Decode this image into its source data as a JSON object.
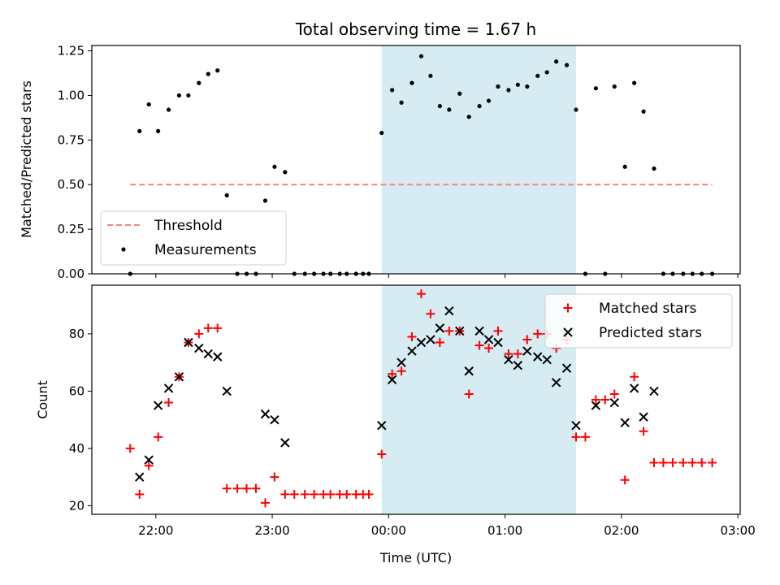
{
  "chart_data": {
    "title": "Total observing time = 1.67 h",
    "xlabel": "Time (UTC)",
    "x_unit": "hours since midnight UTC",
    "xlim": [
      -2.55,
      3.02
    ],
    "x_ticks": [
      {
        "value": -2,
        "label": "22:00"
      },
      {
        "value": -1,
        "label": "23:00"
      },
      {
        "value": 0,
        "label": "00:00"
      },
      {
        "value": 1,
        "label": "01:00"
      },
      {
        "value": 2,
        "label": "02:00"
      },
      {
        "value": 3,
        "label": "03:00"
      }
    ],
    "highlight_span": {
      "x_start": -0.06,
      "x_end": 1.61,
      "color": "#add8e6"
    },
    "panels": [
      {
        "type": "scatter",
        "ylabel": "Matched/Predicted stars",
        "ylim": [
          0,
          1.28
        ],
        "y_ticks": [
          {
            "value": 0,
            "label": "0.00"
          },
          {
            "value": 0.25,
            "label": "0.25"
          },
          {
            "value": 0.5,
            "label": "0.50"
          },
          {
            "value": 0.75,
            "label": "0.75"
          },
          {
            "value": 1.0,
            "label": "1.00"
          },
          {
            "value": 1.25,
            "label": "1.25"
          }
        ],
        "legend": {
          "placement": "lower-left",
          "entries": [
            {
              "label": "Threshold",
              "color": "#ff7f7f",
              "marker": "dashed-line"
            },
            {
              "label": "Measurements",
              "color": "#000000",
              "marker": "dot"
            }
          ]
        },
        "threshold": {
          "name": "Threshold",
          "y": 0.5,
          "x_start": -2.22,
          "x_end": 2.78,
          "color": "#ff7f7f"
        },
        "series": [
          {
            "name": "Measurements",
            "color": "#000000",
            "marker": "dot",
            "points": [
              [
                -2.22,
                0
              ],
              [
                -2.14,
                0.8
              ],
              [
                -2.06,
                0.95
              ],
              [
                -1.98,
                0.8
              ],
              [
                -1.89,
                0.92
              ],
              [
                -1.8,
                1.0
              ],
              [
                -1.72,
                1.0
              ],
              [
                -1.63,
                1.07
              ],
              [
                -1.55,
                1.12
              ],
              [
                -1.47,
                1.14
              ],
              [
                -1.39,
                0.44
              ],
              [
                -1.3,
                0
              ],
              [
                -1.22,
                0
              ],
              [
                -1.14,
                0
              ],
              [
                -1.06,
                0.41
              ],
              [
                -0.98,
                0.6
              ],
              [
                -0.89,
                0.57
              ],
              [
                -0.81,
                0
              ],
              [
                -0.72,
                0
              ],
              [
                -0.64,
                0
              ],
              [
                -0.56,
                0
              ],
              [
                -0.5,
                0
              ],
              [
                -0.42,
                0
              ],
              [
                -0.36,
                0
              ],
              [
                -0.28,
                0
              ],
              [
                -0.22,
                0
              ],
              [
                -0.17,
                0
              ],
              [
                -0.06,
                0.79
              ],
              [
                0.03,
                1.03
              ],
              [
                0.11,
                0.96
              ],
              [
                0.2,
                1.07
              ],
              [
                0.28,
                1.22
              ],
              [
                0.36,
                1.11
              ],
              [
                0.44,
                0.94
              ],
              [
                0.52,
                0.92
              ],
              [
                0.61,
                1.01
              ],
              [
                0.69,
                0.88
              ],
              [
                0.78,
                0.94
              ],
              [
                0.86,
                0.97
              ],
              [
                0.94,
                1.05
              ],
              [
                1.03,
                1.03
              ],
              [
                1.11,
                1.06
              ],
              [
                1.19,
                1.05
              ],
              [
                1.28,
                1.11
              ],
              [
                1.36,
                1.13
              ],
              [
                1.44,
                1.19
              ],
              [
                1.53,
                1.17
              ],
              [
                1.61,
                0.92
              ],
              [
                1.69,
                0
              ],
              [
                1.78,
                1.04
              ],
              [
                1.86,
                0
              ],
              [
                1.94,
                1.05
              ],
              [
                2.03,
                0.6
              ],
              [
                2.11,
                1.07
              ],
              [
                2.19,
                0.91
              ],
              [
                2.28,
                0.59
              ],
              [
                2.36,
                0
              ],
              [
                2.44,
                0
              ],
              [
                2.53,
                0
              ],
              [
                2.61,
                0
              ],
              [
                2.69,
                0
              ],
              [
                2.78,
                0
              ]
            ]
          }
        ]
      },
      {
        "type": "scatter",
        "ylabel": "Count",
        "ylim": [
          17,
          97
        ],
        "y_ticks": [
          {
            "value": 20,
            "label": "20"
          },
          {
            "value": 40,
            "label": "40"
          },
          {
            "value": 60,
            "label": "60"
          },
          {
            "value": 80,
            "label": "80"
          }
        ],
        "legend": {
          "placement": "upper-right",
          "entries": [
            {
              "label": "Matched stars",
              "color": "#ff0000",
              "marker": "plus"
            },
            {
              "label": "Predicted stars",
              "color": "#000000",
              "marker": "cross"
            }
          ]
        },
        "series": [
          {
            "name": "Matched stars",
            "color": "#ff0000",
            "marker": "plus",
            "points": [
              [
                -2.22,
                40
              ],
              [
                -2.14,
                24
              ],
              [
                -2.06,
                34
              ],
              [
                -1.98,
                44
              ],
              [
                -1.89,
                56
              ],
              [
                -1.8,
                65
              ],
              [
                -1.72,
                77
              ],
              [
                -1.63,
                80
              ],
              [
                -1.55,
                82
              ],
              [
                -1.47,
                82
              ],
              [
                -1.39,
                26
              ],
              [
                -1.3,
                26
              ],
              [
                -1.22,
                26
              ],
              [
                -1.14,
                26
              ],
              [
                -1.06,
                21
              ],
              [
                -0.98,
                30
              ],
              [
                -0.89,
                24
              ],
              [
                -0.81,
                24
              ],
              [
                -0.72,
                24
              ],
              [
                -0.64,
                24
              ],
              [
                -0.56,
                24
              ],
              [
                -0.5,
                24
              ],
              [
                -0.42,
                24
              ],
              [
                -0.36,
                24
              ],
              [
                -0.28,
                24
              ],
              [
                -0.22,
                24
              ],
              [
                -0.17,
                24
              ],
              [
                -0.06,
                38
              ],
              [
                0.03,
                66
              ],
              [
                0.11,
                67
              ],
              [
                0.2,
                79
              ],
              [
                0.28,
                94
              ],
              [
                0.36,
                87
              ],
              [
                0.44,
                77
              ],
              [
                0.52,
                81
              ],
              [
                0.61,
                81
              ],
              [
                0.69,
                59
              ],
              [
                0.78,
                76
              ],
              [
                0.86,
                75
              ],
              [
                0.94,
                81
              ],
              [
                1.03,
                73
              ],
              [
                1.11,
                73
              ],
              [
                1.19,
                78
              ],
              [
                1.28,
                80
              ],
              [
                1.36,
                80
              ],
              [
                1.44,
                75
              ],
              [
                1.53,
                78
              ],
              [
                1.61,
                44
              ],
              [
                1.69,
                44
              ],
              [
                1.78,
                57
              ],
              [
                1.86,
                57
              ],
              [
                1.94,
                59
              ],
              [
                2.03,
                29
              ],
              [
                2.11,
                65
              ],
              [
                2.19,
                46
              ],
              [
                2.28,
                35
              ],
              [
                2.36,
                35
              ],
              [
                2.44,
                35
              ],
              [
                2.53,
                35
              ],
              [
                2.61,
                35
              ],
              [
                2.69,
                35
              ],
              [
                2.78,
                35
              ]
            ]
          },
          {
            "name": "Predicted stars",
            "color": "#000000",
            "marker": "cross",
            "points": [
              [
                -2.14,
                30
              ],
              [
                -2.06,
                36
              ],
              [
                -1.98,
                55
              ],
              [
                -1.89,
                61
              ],
              [
                -1.8,
                65
              ],
              [
                -1.72,
                77
              ],
              [
                -1.63,
                75
              ],
              [
                -1.55,
                73
              ],
              [
                -1.47,
                72
              ],
              [
                -1.39,
                60
              ],
              [
                -1.06,
                52
              ],
              [
                -0.98,
                50
              ],
              [
                -0.89,
                42
              ],
              [
                -0.06,
                48
              ],
              [
                0.03,
                64
              ],
              [
                0.11,
                70
              ],
              [
                0.2,
                74
              ],
              [
                0.28,
                77
              ],
              [
                0.36,
                78
              ],
              [
                0.44,
                82
              ],
              [
                0.52,
                88
              ],
              [
                0.61,
                81
              ],
              [
                0.69,
                67
              ],
              [
                0.78,
                81
              ],
              [
                0.86,
                78
              ],
              [
                0.94,
                77
              ],
              [
                1.03,
                71
              ],
              [
                1.11,
                69
              ],
              [
                1.19,
                74
              ],
              [
                1.28,
                72
              ],
              [
                1.36,
                71
              ],
              [
                1.44,
                63
              ],
              [
                1.53,
                68
              ],
              [
                1.61,
                48
              ],
              [
                1.78,
                55
              ],
              [
                1.94,
                56
              ],
              [
                2.03,
                49
              ],
              [
                2.11,
                61
              ],
              [
                2.19,
                51
              ],
              [
                2.28,
                60
              ]
            ]
          }
        ]
      }
    ]
  }
}
